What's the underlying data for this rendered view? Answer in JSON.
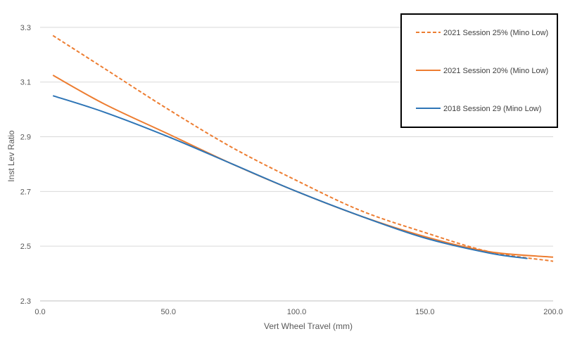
{
  "chart_data": {
    "type": "line",
    "title": "",
    "xlabel": "Vert Wheel Travel (mm)",
    "ylabel": "Inst Lev Ratio",
    "xlim": [
      0,
      200
    ],
    "ylim": [
      2.3,
      3.4
    ],
    "x_ticks": [
      "0.0",
      "50.0",
      "100.0",
      "150.0",
      "200.0"
    ],
    "x_tick_values": [
      0,
      50,
      100,
      150,
      200
    ],
    "y_ticks": [
      "2.3",
      "2.5",
      "2.7",
      "2.9",
      "3.1",
      "3.3"
    ],
    "y_tick_values": [
      2.3,
      2.5,
      2.7,
      2.9,
      3.1,
      3.3
    ],
    "grid": "horizontal",
    "legend_position": "top-right",
    "series": [
      {
        "name": "2021 Session 25% (Mino Low)",
        "color": "#ED7D31",
        "dash": "dashed",
        "x": [
          5,
          25,
          50,
          75,
          100,
          125,
          150,
          175,
          200
        ],
        "y": [
          3.27,
          3.15,
          3.0,
          2.86,
          2.74,
          2.63,
          2.55,
          2.48,
          2.445
        ]
      },
      {
        "name": "2021 Session 20% (Mino Low)",
        "color": "#ED7D31",
        "dash": "solid",
        "x": [
          5,
          25,
          50,
          75,
          100,
          125,
          150,
          175,
          200
        ],
        "y": [
          3.125,
          3.02,
          2.91,
          2.8,
          2.7,
          2.61,
          2.535,
          2.48,
          2.46
        ]
      },
      {
        "name": "2018 Session 29 (Mino Low)",
        "color": "#2E75B6",
        "dash": "solid",
        "x": [
          5,
          25,
          50,
          75,
          100,
          125,
          150,
          175,
          190
        ],
        "y": [
          3.05,
          2.99,
          2.9,
          2.8,
          2.7,
          2.61,
          2.53,
          2.475,
          2.455
        ]
      }
    ]
  }
}
